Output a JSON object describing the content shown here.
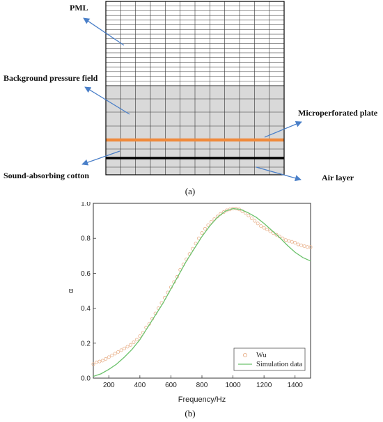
{
  "diagram": {
    "labels": {
      "pml": "PML",
      "background": "Background pressure field",
      "microperforated": "Microperforated plate",
      "cotton": "Sound-absorbing cotton",
      "air": "Air layer"
    },
    "caption_a": "(a)",
    "colors": {
      "plate": "#f08a3c",
      "arrow": "#4a7fc8",
      "mesh_fill": "#d9d9d9",
      "mesh_line": "#333333"
    }
  },
  "caption_b": "(b)",
  "chart_data": {
    "type": "scatter",
    "xlabel": "Frequency/Hz",
    "ylabel": "α",
    "xlim": [
      100,
      1500
    ],
    "ylim": [
      0.0,
      1.0
    ],
    "xticks": [
      200,
      400,
      600,
      800,
      1000,
      1200,
      1400
    ],
    "yticks": [
      0.0,
      0.2,
      0.4,
      0.6,
      0.8,
      1.0
    ],
    "legend_position": "bottom-right",
    "series": [
      {
        "name": "Wu",
        "style": "open-circle",
        "color": "#e8b08a",
        "x": [
          100,
          120,
          140,
          160,
          180,
          200,
          220,
          240,
          260,
          280,
          300,
          320,
          340,
          360,
          380,
          400,
          420,
          440,
          460,
          480,
          500,
          520,
          540,
          560,
          580,
          600,
          620,
          640,
          660,
          680,
          700,
          720,
          740,
          760,
          780,
          800,
          820,
          840,
          860,
          880,
          900,
          920,
          940,
          960,
          980,
          1000,
          1020,
          1040,
          1060,
          1080,
          1100,
          1120,
          1140,
          1160,
          1180,
          1200,
          1220,
          1240,
          1260,
          1280,
          1300,
          1320,
          1340,
          1360,
          1380,
          1400,
          1420,
          1440,
          1460,
          1480,
          1500
        ],
        "y": [
          0.08,
          0.09,
          0.095,
          0.1,
          0.11,
          0.12,
          0.13,
          0.14,
          0.15,
          0.16,
          0.17,
          0.18,
          0.19,
          0.205,
          0.22,
          0.24,
          0.26,
          0.29,
          0.31,
          0.34,
          0.37,
          0.4,
          0.43,
          0.46,
          0.49,
          0.52,
          0.55,
          0.58,
          0.62,
          0.65,
          0.68,
          0.71,
          0.74,
          0.77,
          0.8,
          0.83,
          0.855,
          0.875,
          0.895,
          0.91,
          0.925,
          0.94,
          0.95,
          0.96,
          0.965,
          0.97,
          0.97,
          0.965,
          0.955,
          0.945,
          0.93,
          0.915,
          0.9,
          0.885,
          0.87,
          0.86,
          0.85,
          0.84,
          0.83,
          0.82,
          0.81,
          0.8,
          0.79,
          0.785,
          0.78,
          0.775,
          0.765,
          0.76,
          0.755,
          0.75,
          0.75
        ]
      },
      {
        "name": "Simulation data",
        "style": "line",
        "color": "#6cc26c",
        "x": [
          100,
          150,
          200,
          250,
          300,
          350,
          400,
          450,
          500,
          550,
          600,
          650,
          700,
          750,
          800,
          850,
          900,
          950,
          1000,
          1050,
          1100,
          1150,
          1200,
          1250,
          1300,
          1350,
          1400,
          1450,
          1500
        ],
        "y": [
          0.01,
          0.025,
          0.05,
          0.08,
          0.12,
          0.165,
          0.22,
          0.29,
          0.36,
          0.43,
          0.51,
          0.59,
          0.67,
          0.74,
          0.81,
          0.87,
          0.92,
          0.955,
          0.97,
          0.965,
          0.945,
          0.92,
          0.885,
          0.845,
          0.805,
          0.76,
          0.72,
          0.69,
          0.67
        ]
      }
    ]
  }
}
